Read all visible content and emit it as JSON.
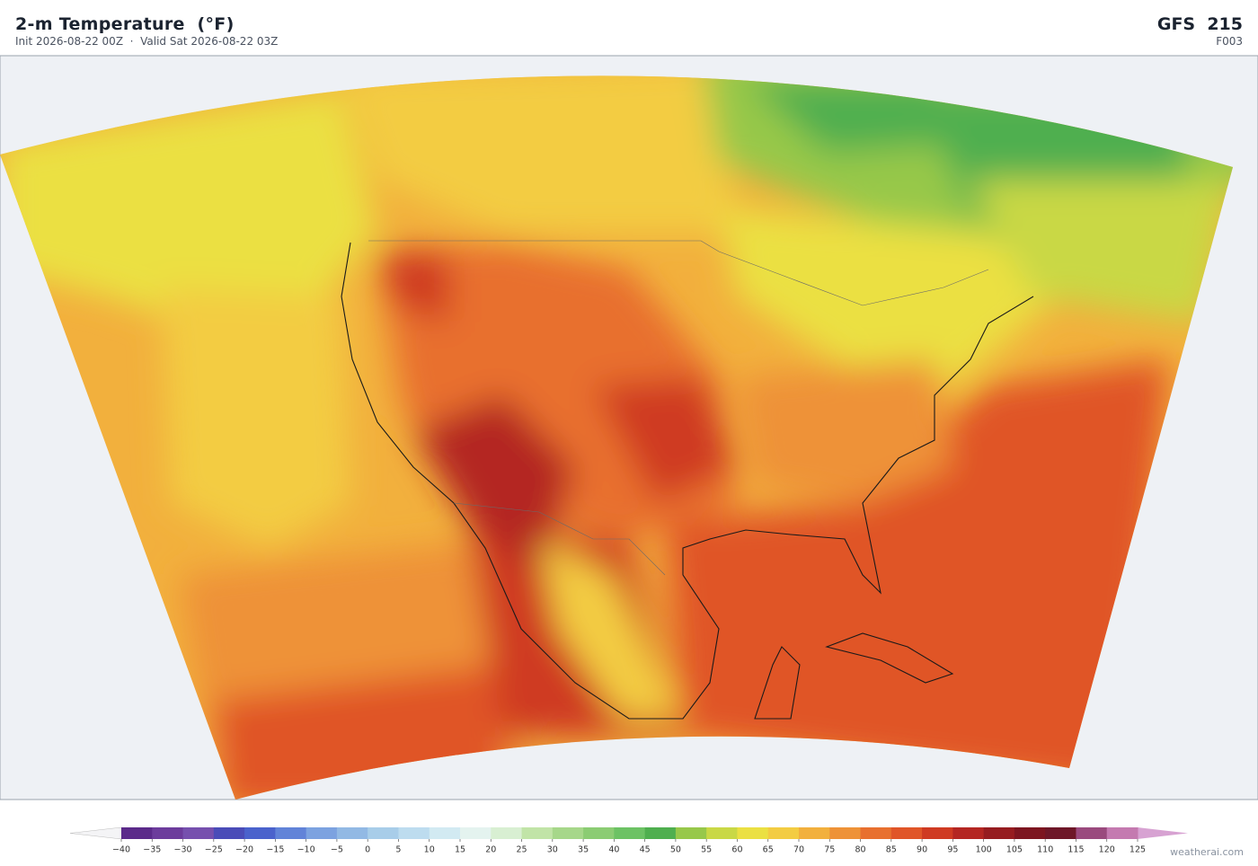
{
  "header": {
    "title": "2-m Temperature  (°F)",
    "subtitle": "Init 2026-08-22 00Z  ·  Valid Sat 2026-08-22 03Z",
    "model": "GFS  215",
    "forecast_hour": "F003"
  },
  "colorbar": {
    "ticks": [
      {
        "value": -40,
        "label": "−40"
      },
      {
        "value": -35,
        "label": "−35"
      },
      {
        "value": -30,
        "label": "−30"
      },
      {
        "value": -25,
        "label": "−25"
      },
      {
        "value": -20,
        "label": "−20"
      },
      {
        "value": -15,
        "label": "−15"
      },
      {
        "value": -10,
        "label": "−10"
      },
      {
        "value": -5,
        "label": "−5"
      },
      0,
      5,
      10,
      15,
      20,
      25,
      30,
      35,
      40,
      45,
      50,
      55,
      60,
      65,
      70,
      75,
      80,
      85,
      90,
      95,
      100,
      105,
      110,
      115,
      120,
      125
    ],
    "colors": [
      "#5b2a8a",
      "#6c3c9c",
      "#7650ae",
      "#4a4cb8",
      "#4a62cc",
      "#6183d8",
      "#7ca2e0",
      "#92b9e4",
      "#a8cde9",
      "#bddcef",
      "#d2eaf2",
      "#e4f3ef",
      "#d8efd2",
      "#c1e4a7",
      "#a6d78a",
      "#8bcc73",
      "#6cc264",
      "#4faf4f",
      "#97c84a",
      "#c9d845",
      "#ebe042",
      "#f3cc42",
      "#f2b03d",
      "#ee9238",
      "#e8702f",
      "#e05528",
      "#cf3a22",
      "#b42622",
      "#961c20",
      "#7d1520",
      "#6e1728",
      "#9a4a7e",
      "#c47ab0"
    ],
    "under_color": "#f4f4f6",
    "over_color": "#d7a2d2"
  },
  "footer": {
    "credit": "weatherai.com"
  }
}
